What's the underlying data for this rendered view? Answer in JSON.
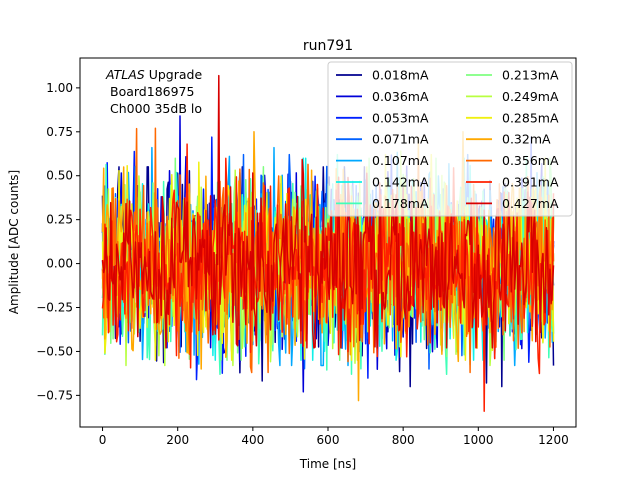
{
  "chart_data": {
    "type": "line",
    "title": "run791",
    "xlabel": "Time [ns]",
    "ylabel": "Amplitude [ADC counts]",
    "xlim": [
      -60,
      1260
    ],
    "ylim": [
      -0.93,
      1.17
    ],
    "xticks": [
      0,
      200,
      400,
      600,
      800,
      1000,
      1200
    ],
    "yticks": [
      -0.75,
      -0.5,
      -0.25,
      0.0,
      0.25,
      0.5,
      0.75,
      1.0
    ],
    "xtick_labels": [
      "0",
      "200",
      "400",
      "600",
      "800",
      "1000",
      "1200"
    ],
    "ytick_labels": [
      "−0.75",
      "−0.50",
      "−0.25",
      "0.00",
      "0.25",
      "0.50",
      "0.75",
      "1.00"
    ],
    "x_sampling": {
      "start": 0,
      "end": 1200,
      "step": 3.125
    },
    "annotation": {
      "prefix": "ATLAS",
      "suffix": " Upgrade",
      "line2": "Board186975",
      "line3": "Ch000 35dB lo"
    },
    "legend_position": "upper-right",
    "legend_columns": 2,
    "grid": false,
    "series": [
      {
        "name": "0.018mA",
        "color": "#00008f",
        "amp": 0.24,
        "ymin": -0.7,
        "ymax": 0.55
      },
      {
        "name": "0.036mA",
        "color": "#0000d8",
        "amp": 0.24,
        "ymin": -0.73,
        "ymax": 0.84
      },
      {
        "name": "0.053mA",
        "color": "#0020ff",
        "amp": 0.24,
        "ymin": -0.66,
        "ymax": 0.72
      },
      {
        "name": "0.071mA",
        "color": "#0060ff",
        "amp": 0.24,
        "ymin": -0.6,
        "ymax": 0.62
      },
      {
        "name": "0.107mA",
        "color": "#00a8ff",
        "amp": 0.24,
        "ymin": -0.58,
        "ymax": 0.66
      },
      {
        "name": "0.142mA",
        "color": "#10f0e8",
        "amp": 0.24,
        "ymin": -0.55,
        "ymax": 0.6
      },
      {
        "name": "0.178mA",
        "color": "#40ffb8",
        "amp": 0.24,
        "ymin": -0.63,
        "ymax": 0.62
      },
      {
        "name": "0.213mA",
        "color": "#7fff80",
        "amp": 0.24,
        "ymin": -0.55,
        "ymax": 0.6
      },
      {
        "name": "0.249mA",
        "color": "#b8ff40",
        "amp": 0.24,
        "ymin": -0.58,
        "ymax": 0.64
      },
      {
        "name": "0.285mA",
        "color": "#f0f010",
        "amp": 0.24,
        "ymin": -0.55,
        "ymax": 0.62
      },
      {
        "name": "0.32mA",
        "color": "#ffa800",
        "amp": 0.24,
        "ymin": -0.78,
        "ymax": 0.75
      },
      {
        "name": "0.356mA",
        "color": "#ff6800",
        "amp": 0.25,
        "ymin": -0.62,
        "ymax": 0.77
      },
      {
        "name": "0.391mA",
        "color": "#ff2000",
        "amp": 0.25,
        "ymin": -0.84,
        "ymax": 0.68
      },
      {
        "name": "0.427mA",
        "color": "#d80000",
        "amp": 0.22,
        "ymin": -0.48,
        "ymax": 1.07
      }
    ]
  }
}
